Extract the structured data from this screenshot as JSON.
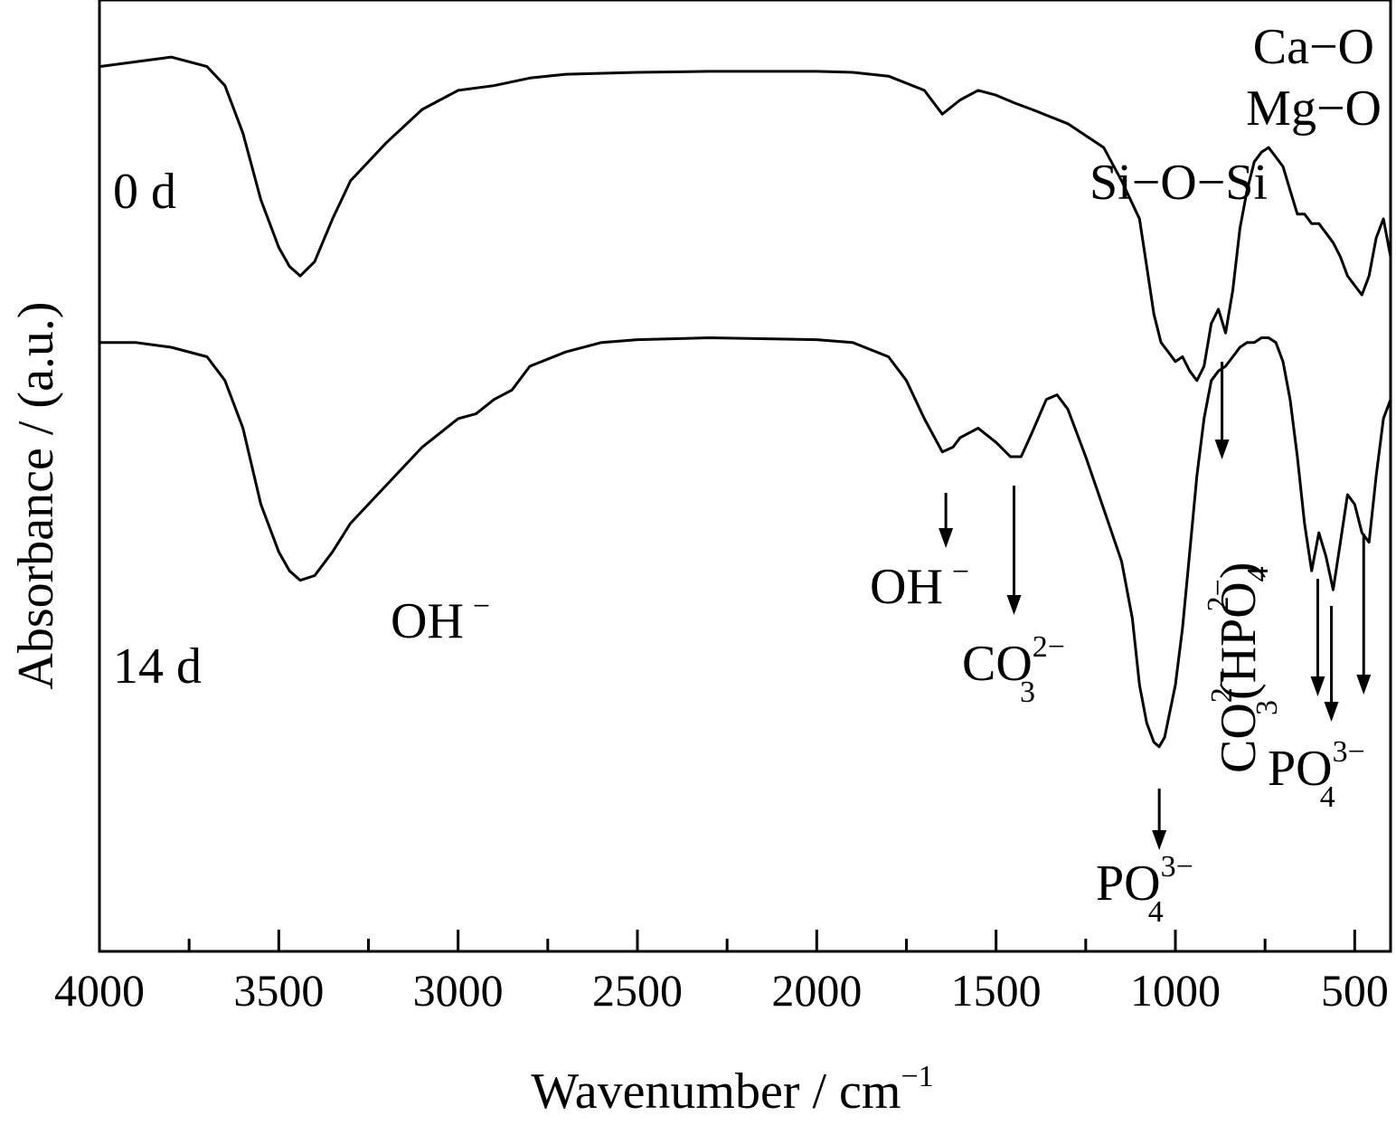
{
  "chart_data": {
    "type": "line",
    "xlabel": {
      "base": "Wavenumber / cm",
      "sup": "−1"
    },
    "ylabel": "Absorbance / (a.u.)",
    "xlim": [
      4000,
      400
    ],
    "x_reversed": true,
    "y_ticks": false,
    "grid": false,
    "x_ticks": [
      4000,
      3500,
      3000,
      2500,
      2000,
      1500,
      1000,
      500
    ],
    "x_minor_ticks": [
      3750,
      3250,
      2750,
      2250,
      1750,
      1250,
      750
    ],
    "series": [
      {
        "name": "0 d",
        "color": "#000000",
        "points": [
          [
            4000,
            0.93
          ],
          [
            3900,
            0.935
          ],
          [
            3800,
            0.94
          ],
          [
            3700,
            0.93
          ],
          [
            3650,
            0.91
          ],
          [
            3600,
            0.86
          ],
          [
            3550,
            0.79
          ],
          [
            3500,
            0.74
          ],
          [
            3470,
            0.72
          ],
          [
            3440,
            0.71
          ],
          [
            3400,
            0.725
          ],
          [
            3350,
            0.77
          ],
          [
            3300,
            0.81
          ],
          [
            3200,
            0.85
          ],
          [
            3100,
            0.885
          ],
          [
            3000,
            0.905
          ],
          [
            2900,
            0.91
          ],
          [
            2800,
            0.918
          ],
          [
            2700,
            0.922
          ],
          [
            2500,
            0.924
          ],
          [
            2300,
            0.925
          ],
          [
            2000,
            0.925
          ],
          [
            1900,
            0.924
          ],
          [
            1800,
            0.92
          ],
          [
            1700,
            0.905
          ],
          [
            1650,
            0.88
          ],
          [
            1600,
            0.895
          ],
          [
            1550,
            0.905
          ],
          [
            1500,
            0.9
          ],
          [
            1450,
            0.892
          ],
          [
            1400,
            0.885
          ],
          [
            1300,
            0.87
          ],
          [
            1200,
            0.845
          ],
          [
            1150,
            0.81
          ],
          [
            1100,
            0.77
          ],
          [
            1080,
            0.72
          ],
          [
            1060,
            0.67
          ],
          [
            1040,
            0.64
          ],
          [
            1020,
            0.63
          ],
          [
            1000,
            0.62
          ],
          [
            980,
            0.625
          ],
          [
            960,
            0.61
          ],
          [
            940,
            0.6
          ],
          [
            920,
            0.615
          ],
          [
            900,
            0.66
          ],
          [
            880,
            0.675
          ],
          [
            860,
            0.65
          ],
          [
            840,
            0.695
          ],
          [
            820,
            0.76
          ],
          [
            800,
            0.8
          ],
          [
            780,
            0.83
          ],
          [
            760,
            0.84
          ],
          [
            740,
            0.845
          ],
          [
            720,
            0.835
          ],
          [
            700,
            0.825
          ],
          [
            680,
            0.8
          ],
          [
            660,
            0.775
          ],
          [
            640,
            0.775
          ],
          [
            620,
            0.765
          ],
          [
            600,
            0.765
          ],
          [
            580,
            0.755
          ],
          [
            560,
            0.745
          ],
          [
            540,
            0.73
          ],
          [
            520,
            0.71
          ],
          [
            500,
            0.7
          ],
          [
            480,
            0.69
          ],
          [
            460,
            0.71
          ],
          [
            440,
            0.75
          ],
          [
            420,
            0.77
          ],
          [
            400,
            0.73
          ]
        ]
      },
      {
        "name": "14 d",
        "color": "#000000",
        "points": [
          [
            4000,
            0.64
          ],
          [
            3900,
            0.64
          ],
          [
            3800,
            0.635
          ],
          [
            3700,
            0.625
          ],
          [
            3650,
            0.6
          ],
          [
            3600,
            0.55
          ],
          [
            3550,
            0.47
          ],
          [
            3500,
            0.42
          ],
          [
            3470,
            0.4
          ],
          [
            3440,
            0.39
          ],
          [
            3400,
            0.395
          ],
          [
            3350,
            0.42
          ],
          [
            3300,
            0.45
          ],
          [
            3200,
            0.49
          ],
          [
            3100,
            0.53
          ],
          [
            3000,
            0.56
          ],
          [
            2950,
            0.565
          ],
          [
            2900,
            0.58
          ],
          [
            2850,
            0.59
          ],
          [
            2800,
            0.615
          ],
          [
            2700,
            0.63
          ],
          [
            2600,
            0.64
          ],
          [
            2500,
            0.643
          ],
          [
            2300,
            0.645
          ],
          [
            2000,
            0.643
          ],
          [
            1900,
            0.64
          ],
          [
            1800,
            0.625
          ],
          [
            1750,
            0.6
          ],
          [
            1700,
            0.56
          ],
          [
            1650,
            0.525
          ],
          [
            1620,
            0.53
          ],
          [
            1600,
            0.54
          ],
          [
            1550,
            0.55
          ],
          [
            1500,
            0.535
          ],
          [
            1460,
            0.52
          ],
          [
            1430,
            0.52
          ],
          [
            1400,
            0.545
          ],
          [
            1360,
            0.58
          ],
          [
            1330,
            0.585
          ],
          [
            1300,
            0.57
          ],
          [
            1250,
            0.52
          ],
          [
            1200,
            0.465
          ],
          [
            1150,
            0.41
          ],
          [
            1120,
            0.35
          ],
          [
            1100,
            0.28
          ],
          [
            1080,
            0.24
          ],
          [
            1060,
            0.22
          ],
          [
            1045,
            0.215
          ],
          [
            1030,
            0.225
          ],
          [
            1000,
            0.28
          ],
          [
            980,
            0.34
          ],
          [
            960,
            0.42
          ],
          [
            940,
            0.5
          ],
          [
            920,
            0.56
          ],
          [
            900,
            0.6
          ],
          [
            880,
            0.61
          ],
          [
            860,
            0.615
          ],
          [
            840,
            0.625
          ],
          [
            820,
            0.635
          ],
          [
            800,
            0.64
          ],
          [
            780,
            0.64
          ],
          [
            760,
            0.645
          ],
          [
            740,
            0.645
          ],
          [
            720,
            0.64
          ],
          [
            700,
            0.62
          ],
          [
            680,
            0.58
          ],
          [
            660,
            0.52
          ],
          [
            640,
            0.45
          ],
          [
            620,
            0.4
          ],
          [
            600,
            0.44
          ],
          [
            580,
            0.415
          ],
          [
            560,
            0.38
          ],
          [
            540,
            0.43
          ],
          [
            520,
            0.48
          ],
          [
            500,
            0.47
          ],
          [
            480,
            0.44
          ],
          [
            460,
            0.43
          ],
          [
            440,
            0.5
          ],
          [
            420,
            0.56
          ],
          [
            400,
            0.58
          ]
        ]
      }
    ],
    "annotations": [
      {
        "text": "0 d",
        "role": "series-label"
      },
      {
        "text": "14 d",
        "role": "series-label"
      },
      {
        "text": "Ca−O",
        "role": "band"
      },
      {
        "text": "Mg−O",
        "role": "band"
      },
      {
        "text": "Si−O−Si",
        "role": "band"
      },
      {
        "text": "OH",
        "sup": "−",
        "role": "band",
        "x": 3400
      },
      {
        "text": "OH",
        "sup": "−",
        "role": "band",
        "x": 1640,
        "arrow": true
      },
      {
        "text": "CO",
        "sub": "3",
        "sup": "2−",
        "role": "band",
        "x": 1450,
        "arrow": true
      },
      {
        "text": "PO",
        "sub": "4",
        "sup": "3−",
        "role": "band",
        "x": 1045,
        "arrow": true
      },
      {
        "text": "CO",
        "sub": "3",
        "sup": "2−",
        "extra": "(HPO",
        "extra_sub": "4",
        "extra_sup": "2−",
        "extra_close": ")",
        "role": "band",
        "x": 870,
        "arrow": true,
        "vertical": true
      },
      {
        "text": "PO",
        "sub": "4",
        "sup": "3−",
        "role": "band",
        "x": [
          603,
          565,
          475
        ],
        "arrow": true
      }
    ]
  }
}
